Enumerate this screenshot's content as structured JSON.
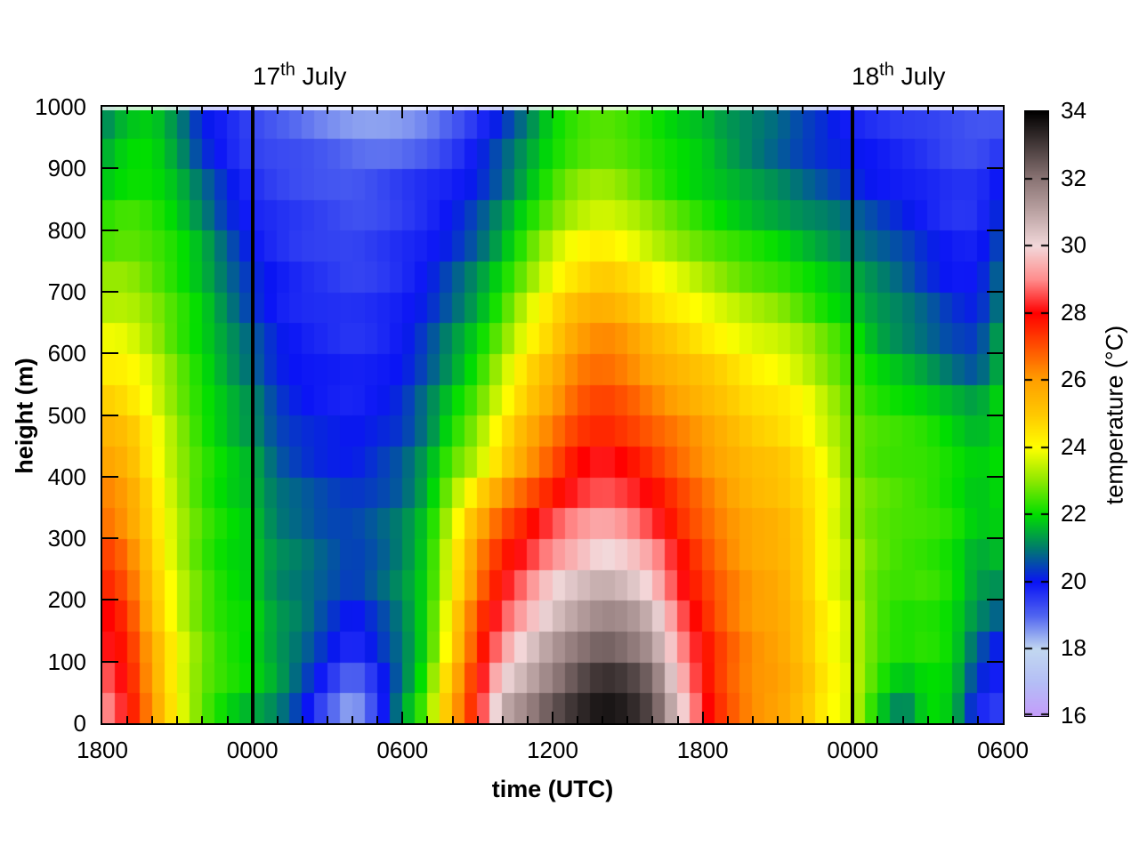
{
  "titles": {
    "day1": {
      "number": "17",
      "ordinal": "th",
      "rest": " July"
    },
    "day2": {
      "number": "18",
      "ordinal": "th",
      "rest": " July"
    }
  },
  "axes": {
    "x": {
      "label": "time (UTC)",
      "major_ticks": [
        "1800",
        "0000",
        "0600",
        "1200",
        "1800",
        "0000",
        "0600"
      ]
    },
    "y": {
      "label": "height (m)",
      "ticks": [
        "1000",
        "900",
        "800",
        "700",
        "600",
        "500",
        "400",
        "300",
        "200",
        "100",
        "0"
      ]
    }
  },
  "colorbar": {
    "label": "temperature (°C)",
    "ticks": [
      "34",
      "32",
      "30",
      "28",
      "26",
      "24",
      "22",
      "20",
      "18",
      "16"
    ],
    "min": 16,
    "max": 34,
    "palette": [
      [
        16,
        "#C49CFA"
      ],
      [
        17,
        "#B4BEF6"
      ],
      [
        18,
        "#C2D8F0"
      ],
      [
        19,
        "#5064F0"
      ],
      [
        20,
        "#0A14F5"
      ],
      [
        21,
        "#007A6E"
      ],
      [
        22,
        "#00DE00"
      ],
      [
        23,
        "#8CE800"
      ],
      [
        24,
        "#FFFF00"
      ],
      [
        25,
        "#FFC800"
      ],
      [
        26,
        "#FFA000"
      ],
      [
        27,
        "#FF5000"
      ],
      [
        28,
        "#FF0000"
      ],
      [
        29,
        "#FF8C8C"
      ],
      [
        30,
        "#F2D8DA"
      ],
      [
        31,
        "#BCA4A4"
      ],
      [
        32,
        "#8A7474"
      ],
      [
        33,
        "#453A3A"
      ],
      [
        34,
        "#000000"
      ]
    ]
  },
  "chart_data": {
    "type": "heatmap",
    "xlabel": "time (UTC)",
    "ylabel": "height (m)",
    "zlabel": "temperature (°C)",
    "z_range": [
      16,
      34
    ],
    "x_hours_utc": [
      "1800",
      "1900",
      "2000",
      "2100",
      "2200",
      "2300",
      "0000",
      "0100",
      "0200",
      "0300",
      "0400",
      "0500",
      "0600",
      "0700",
      "0800",
      "0900",
      "1000",
      "1100",
      "1200",
      "1300",
      "1400",
      "1500",
      "1600",
      "1700",
      "1800",
      "1900",
      "2000",
      "2100",
      "2200",
      "2300",
      "0000",
      "0100",
      "0200",
      "0300",
      "0400",
      "0500",
      "0600"
    ],
    "midnight_line_hour_index": [
      6,
      30
    ],
    "day_annotations": [
      {
        "label": "17th July",
        "at_hour_index": 6
      },
      {
        "label": "18th July",
        "at_hour_index": 30
      }
    ],
    "heights_m": [
      0,
      50,
      100,
      150,
      200,
      250,
      300,
      350,
      400,
      450,
      500,
      550,
      600,
      650,
      700,
      750,
      800,
      850,
      900,
      950,
      1000
    ],
    "grid_rows_by_height": [
      [
        29.5,
        28.0,
        26.0,
        24.0,
        22.6,
        21.8,
        21.4,
        21.0,
        20.0,
        18.6,
        17.9,
        19.3,
        21.8,
        23.2,
        26.0,
        28.0,
        31.0,
        31.8,
        32.8,
        33.5,
        34.0,
        33.8,
        33.0,
        30.5,
        28.2,
        27.0,
        26.2,
        26.0,
        25.3,
        24.2,
        23.6,
        21.5,
        20.2,
        22.0,
        21.8,
        19.8,
        19.5
      ],
      [
        29.0,
        28.0,
        26.0,
        24.0,
        22.7,
        22.2,
        21.8,
        21.3,
        20.5,
        19.5,
        18.6,
        19.6,
        20.9,
        22.4,
        25.5,
        27.8,
        30.5,
        31.3,
        32.2,
        33.0,
        33.5,
        33.3,
        32.5,
        30.2,
        28.2,
        27.0,
        26.2,
        26.0,
        25.3,
        24.2,
        23.6,
        22.3,
        21.5,
        22.0,
        21.8,
        20.0,
        19.5
      ],
      [
        28.5,
        27.8,
        25.8,
        24.0,
        22.8,
        22.3,
        22.0,
        21.5,
        20.8,
        20.0,
        19.3,
        20.0,
        20.9,
        22.2,
        25.0,
        27.5,
        29.5,
        30.5,
        31.5,
        32.3,
        32.8,
        32.5,
        31.8,
        29.5,
        28.0,
        27.0,
        26.2,
        26.0,
        25.3,
        24.2,
        23.6,
        22.5,
        22.0,
        22.2,
        22.0,
        20.5,
        19.8
      ],
      [
        28.2,
        27.5,
        25.5,
        23.8,
        22.7,
        22.2,
        22.0,
        21.3,
        21.0,
        20.3,
        19.8,
        20.3,
        21.0,
        22.1,
        24.5,
        27.2,
        28.8,
        29.8,
        30.8,
        31.5,
        32.0,
        31.8,
        31.0,
        29.0,
        27.8,
        26.8,
        26.1,
        25.9,
        25.2,
        24.1,
        23.5,
        22.5,
        22.2,
        22.3,
        22.0,
        21.0,
        20.2
      ],
      [
        28.0,
        27.2,
        25.2,
        23.6,
        22.6,
        22.1,
        21.9,
        21.2,
        21.0,
        20.6,
        20.2,
        20.6,
        21.2,
        22.0,
        24.2,
        26.8,
        28.3,
        29.2,
        30.2,
        30.8,
        31.2,
        31.0,
        30.2,
        28.6,
        27.5,
        26.6,
        26.0,
        25.8,
        25.1,
        24.0,
        23.4,
        22.6,
        22.3,
        22.4,
        22.1,
        21.3,
        21.0
      ],
      [
        27.5,
        26.8,
        25.0,
        23.5,
        22.5,
        22.0,
        21.8,
        21.2,
        21.0,
        20.7,
        20.4,
        20.7,
        21.2,
        22.0,
        24.0,
        26.3,
        27.8,
        28.6,
        29.5,
        30.0,
        30.5,
        30.2,
        29.5,
        28.2,
        27.2,
        26.5,
        25.9,
        25.7,
        25.0,
        23.9,
        23.3,
        22.6,
        22.4,
        22.4,
        22.1,
        21.4,
        21.5
      ],
      [
        27.0,
        26.3,
        24.8,
        23.4,
        22.5,
        22.0,
        21.8,
        21.1,
        20.9,
        20.6,
        20.5,
        20.7,
        21.1,
        21.9,
        23.8,
        25.9,
        27.3,
        28.0,
        28.8,
        29.3,
        29.7,
        29.4,
        28.8,
        27.8,
        27.0,
        26.3,
        25.8,
        25.6,
        25.0,
        23.8,
        23.2,
        22.7,
        22.5,
        22.4,
        22.2,
        21.6,
        21.8
      ],
      [
        26.5,
        26.0,
        24.6,
        23.3,
        22.4,
        22.0,
        21.7,
        21.0,
        20.8,
        20.5,
        20.4,
        20.6,
        20.9,
        21.7,
        23.4,
        25.4,
        26.8,
        27.4,
        28.2,
        28.7,
        29.0,
        28.7,
        28.2,
        27.4,
        26.7,
        26.1,
        25.6,
        25.4,
        24.9,
        24.1,
        23.0,
        22.7,
        22.5,
        22.4,
        22.2,
        21.8,
        22.0
      ],
      [
        26.2,
        25.8,
        24.4,
        23.2,
        22.4,
        21.9,
        21.6,
        20.8,
        20.5,
        20.3,
        20.2,
        20.4,
        20.7,
        21.5,
        22.8,
        23.6,
        25.2,
        26.3,
        27.2,
        28.1,
        28.4,
        28.1,
        27.6,
        27.0,
        26.4,
        25.9,
        25.4,
        25.2,
        24.7,
        23.9,
        22.9,
        22.6,
        22.5,
        22.4,
        22.1,
        21.8,
        22.0
      ],
      [
        25.8,
        25.4,
        24.2,
        23.1,
        22.3,
        21.8,
        21.4,
        20.6,
        20.3,
        20.1,
        20.0,
        20.2,
        20.5,
        21.2,
        22.4,
        23.2,
        24.6,
        25.8,
        26.7,
        27.6,
        27.9,
        27.6,
        27.1,
        26.6,
        26.1,
        25.6,
        25.1,
        24.9,
        24.4,
        23.6,
        22.8,
        22.5,
        22.4,
        22.3,
        22.0,
        21.7,
        22.0
      ],
      [
        25.2,
        24.9,
        24.0,
        23.0,
        22.2,
        21.7,
        21.2,
        20.4,
        20.1,
        20.0,
        19.9,
        20.1,
        20.3,
        21.0,
        22.0,
        22.8,
        24.1,
        25.3,
        26.2,
        27.1,
        27.4,
        27.1,
        26.6,
        26.2,
        25.8,
        25.3,
        24.8,
        24.6,
        24.2,
        23.4,
        22.7,
        22.4,
        22.3,
        22.2,
        21.9,
        21.6,
        22.0
      ],
      [
        24.6,
        24.4,
        23.7,
        22.8,
        22.1,
        21.5,
        21.0,
        20.3,
        20.0,
        19.9,
        19.8,
        19.9,
        20.1,
        20.8,
        21.6,
        22.4,
        23.6,
        24.8,
        25.7,
        26.6,
        26.9,
        26.6,
        26.1,
        25.7,
        25.3,
        24.9,
        24.4,
        24.2,
        23.8,
        23.1,
        22.5,
        22.2,
        21.9,
        21.6,
        21.2,
        20.9,
        21.9
      ],
      [
        24.1,
        24.0,
        23.4,
        22.6,
        22.0,
        21.4,
        20.8,
        20.1,
        19.9,
        19.8,
        19.7,
        19.8,
        20.0,
        20.5,
        21.3,
        22.0,
        23.1,
        24.3,
        25.2,
        26.3,
        26.6,
        26.3,
        25.6,
        25.2,
        24.8,
        24.4,
        24.0,
        23.8,
        23.4,
        22.8,
        22.3,
        21.6,
        21.3,
        21.0,
        20.6,
        20.4,
        21.6
      ],
      [
        23.6,
        23.6,
        23.1,
        22.4,
        21.9,
        21.2,
        20.5,
        20.0,
        19.8,
        19.7,
        19.6,
        19.7,
        19.9,
        20.3,
        21.0,
        21.7,
        22.6,
        23.8,
        24.7,
        25.7,
        26.0,
        25.7,
        25.0,
        24.6,
        24.2,
        23.8,
        23.5,
        23.3,
        22.9,
        22.4,
        22.0,
        21.4,
        21.1,
        20.8,
        20.4,
        20.2,
        21.4
      ],
      [
        23.2,
        23.2,
        22.8,
        22.3,
        21.8,
        21.0,
        20.3,
        19.9,
        19.7,
        19.6,
        19.5,
        19.6,
        19.8,
        20.1,
        20.7,
        21.3,
        22.2,
        23.2,
        24.3,
        25.0,
        25.4,
        25.0,
        24.4,
        24.0,
        23.6,
        23.2,
        22.9,
        22.7,
        22.3,
        21.9,
        21.6,
        21.2,
        20.9,
        20.5,
        20.1,
        20.0,
        21.0
      ],
      [
        22.8,
        22.9,
        22.6,
        22.2,
        21.6,
        20.8,
        20.1,
        19.8,
        19.6,
        19.5,
        19.4,
        19.5,
        19.7,
        19.9,
        20.4,
        21.0,
        21.8,
        22.7,
        23.7,
        24.3,
        24.6,
        24.3,
        23.8,
        23.4,
        23.0,
        22.7,
        22.4,
        22.2,
        21.9,
        21.6,
        21.3,
        21.0,
        20.7,
        20.2,
        19.9,
        19.9,
        20.8
      ],
      [
        22.4,
        22.6,
        22.4,
        22.0,
        21.4,
        20.5,
        19.9,
        19.7,
        19.5,
        19.4,
        19.3,
        19.4,
        19.6,
        19.8,
        20.1,
        20.6,
        21.4,
        22.3,
        23.1,
        23.7,
        24.0,
        23.7,
        23.2,
        22.8,
        22.4,
        22.1,
        21.9,
        21.7,
        21.4,
        21.2,
        20.9,
        20.6,
        20.3,
        20.0,
        19.7,
        19.7,
        20.5
      ],
      [
        22.0,
        22.3,
        22.2,
        21.8,
        21.0,
        20.2,
        19.7,
        19.5,
        19.4,
        19.3,
        19.2,
        19.3,
        19.5,
        19.7,
        19.9,
        20.3,
        21.0,
        21.8,
        22.6,
        23.2,
        23.4,
        23.1,
        22.7,
        22.3,
        22.0,
        21.8,
        21.5,
        21.3,
        21.0,
        20.8,
        20.5,
        20.2,
        20.0,
        19.8,
        19.6,
        19.6,
        20.2
      ],
      [
        21.6,
        22.0,
        22.0,
        21.5,
        20.6,
        20.0,
        19.6,
        19.4,
        19.3,
        19.2,
        19.1,
        19.2,
        19.4,
        19.6,
        19.8,
        20.1,
        20.7,
        21.4,
        22.2,
        22.7,
        22.9,
        22.7,
        22.3,
        22.0,
        21.8,
        21.5,
        21.2,
        20.9,
        20.6,
        20.3,
        20.1,
        19.9,
        19.8,
        19.7,
        19.5,
        19.5,
        19.9
      ],
      [
        21.2,
        21.8,
        21.9,
        21.2,
        20.2,
        19.8,
        19.4,
        19.2,
        19.1,
        18.9,
        18.7,
        18.6,
        18.6,
        18.8,
        19.2,
        19.8,
        20.5,
        21.2,
        22.0,
        22.5,
        22.7,
        22.5,
        22.2,
        21.9,
        21.7,
        21.3,
        21.0,
        20.7,
        20.4,
        20.1,
        19.9,
        19.8,
        19.6,
        19.5,
        19.3,
        19.2,
        19.4
      ],
      [
        21.0,
        21.8,
        22.0,
        21.2,
        20.0,
        19.6,
        19.2,
        19.0,
        18.8,
        18.6,
        18.4,
        18.3,
        18.3,
        18.5,
        18.9,
        19.5,
        20.2,
        21.0,
        22.0,
        22.3,
        22.4,
        22.3,
        22.1,
        21.9,
        21.8,
        21.4,
        21.1,
        20.8,
        20.4,
        20.2,
        19.8,
        19.6,
        19.5,
        19.4,
        19.2,
        19.0,
        18.9
      ]
    ]
  }
}
